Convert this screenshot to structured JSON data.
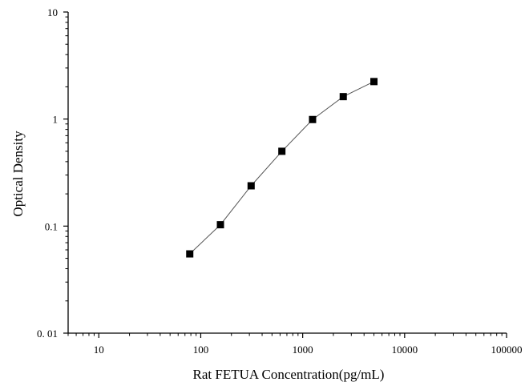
{
  "chart_data": {
    "type": "line",
    "title": "",
    "xlabel": "Rat FETUA Concentration(pg/mL)",
    "ylabel": "Optical Density",
    "x_scale": "log",
    "y_scale": "log",
    "xlim": [
      5,
      100000
    ],
    "ylim": [
      0.01,
      10
    ],
    "x_ticks": [
      10,
      100,
      1000,
      10000,
      100000
    ],
    "x_tick_labels": [
      "10",
      "100",
      "1000",
      "10000",
      "100000"
    ],
    "y_ticks": [
      0.01,
      0.1,
      1,
      10
    ],
    "y_tick_labels": [
      "0. 01",
      "0.1",
      "1",
      "10"
    ],
    "grid": false,
    "series": [
      {
        "marker": "square",
        "color": "#000000",
        "line_color": "#555555",
        "x": [
          78,
          156,
          312,
          625,
          1250,
          2500,
          5000
        ],
        "y": [
          0.055,
          0.103,
          0.238,
          0.5,
          0.99,
          1.62,
          2.24
        ]
      }
    ]
  }
}
